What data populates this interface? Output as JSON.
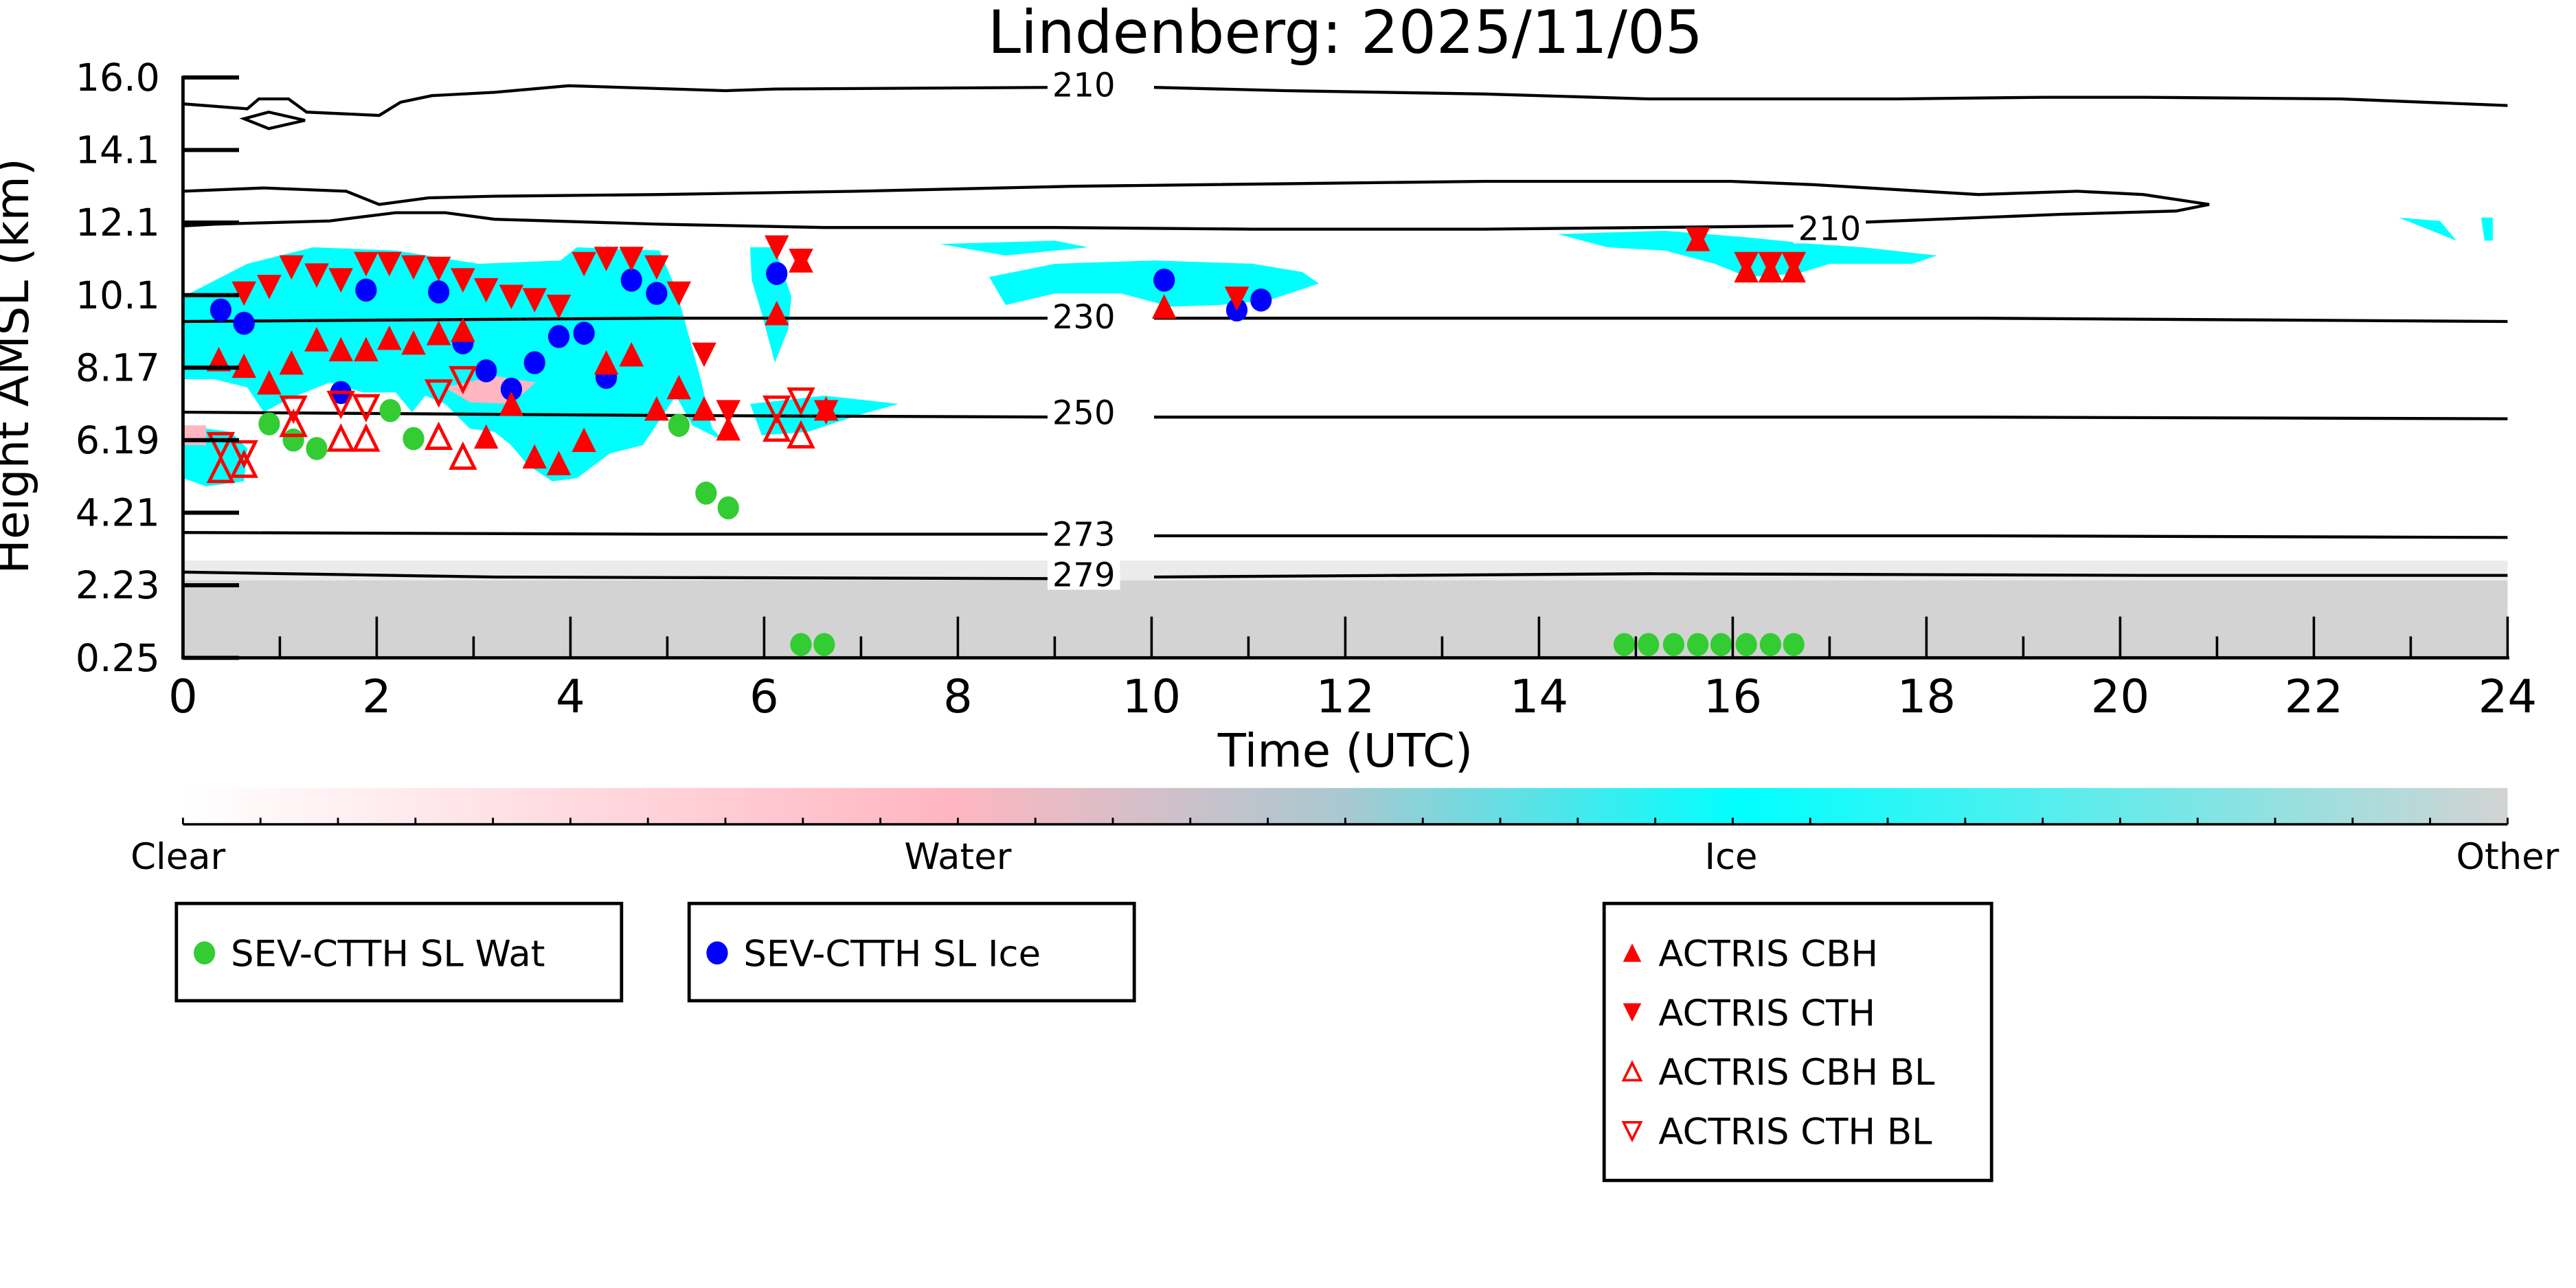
{
  "chart_data": {
    "type": "scatter",
    "title": "Lindenberg: 2025/11/05",
    "xlabel": "Time (UTC)",
    "ylabel": "Height AMSL (km)",
    "xlim": [
      0,
      24
    ],
    "ylim": [
      0.25,
      16.0
    ],
    "x_ticks": [
      "0",
      "2",
      "4",
      "6",
      "8",
      "10",
      "12",
      "14",
      "16",
      "18",
      "20",
      "22",
      "24"
    ],
    "y_ticks": [
      "0.25",
      "2.23",
      "4.21",
      "6.19",
      "8.17",
      "10.1",
      "12.1",
      "14.1",
      "16.0"
    ],
    "contour_labels": [
      {
        "label": "210",
        "t": 9.3,
        "h": 15.8
      },
      {
        "label": "210",
        "t": 17.0,
        "h": 11.9
      },
      {
        "label": "230",
        "t": 9.3,
        "h": 9.5
      },
      {
        "label": "250",
        "t": 9.3,
        "h": 6.9
      },
      {
        "label": "273",
        "t": 9.3,
        "h": 3.6
      },
      {
        "label": "279",
        "t": 9.3,
        "h": 2.5
      }
    ],
    "colorbar": {
      "labels": [
        "Clear",
        "Water",
        "Ice",
        "Other"
      ],
      "colors": [
        "#ffffff",
        "#ffb6c1",
        "#00ffff",
        "#d3d3d3"
      ]
    },
    "series": [
      {
        "name": "SEV-CTTH SL Wat",
        "marker": "circle",
        "color": "#33cc33",
        "points": [
          [
            0.89,
            6.6
          ],
          [
            1.14,
            6.16
          ],
          [
            1.38,
            5.93
          ],
          [
            2.14,
            6.96
          ],
          [
            2.38,
            6.2
          ],
          [
            5.12,
            6.56
          ],
          [
            5.4,
            4.72
          ],
          [
            5.63,
            4.32
          ],
          [
            6.38,
            0.61
          ],
          [
            6.62,
            0.61
          ],
          [
            14.88,
            0.61
          ],
          [
            15.13,
            0.61
          ],
          [
            15.39,
            0.61
          ],
          [
            15.64,
            0.61
          ],
          [
            15.88,
            0.61
          ],
          [
            16.14,
            0.61
          ],
          [
            16.39,
            0.61
          ],
          [
            16.63,
            0.61
          ]
        ]
      },
      {
        "name": "SEV-CTTH SL Ice",
        "marker": "circle",
        "color": "#0000ff",
        "points": [
          [
            0.39,
            9.69
          ],
          [
            0.63,
            9.33
          ],
          [
            1.63,
            7.45
          ],
          [
            1.89,
            10.23
          ],
          [
            2.64,
            10.18
          ],
          [
            2.89,
            8.8
          ],
          [
            3.13,
            8.04
          ],
          [
            3.39,
            7.54
          ],
          [
            3.63,
            8.26
          ],
          [
            3.88,
            8.97
          ],
          [
            4.14,
            9.06
          ],
          [
            4.37,
            7.86
          ],
          [
            4.63,
            10.5
          ],
          [
            4.89,
            10.14
          ],
          [
            6.13,
            10.68
          ],
          [
            10.13,
            10.5
          ],
          [
            10.88,
            9.69
          ],
          [
            11.13,
            9.96
          ]
        ]
      },
      {
        "name": "ACTRIS CBH",
        "marker": "triangle-up",
        "color": "#ff0000",
        "points": [
          [
            0.37,
            8.35
          ],
          [
            0.63,
            8.17
          ],
          [
            0.89,
            7.72
          ],
          [
            1.12,
            8.26
          ],
          [
            1.38,
            8.89
          ],
          [
            1.63,
            8.62
          ],
          [
            1.89,
            8.62
          ],
          [
            2.13,
            8.93
          ],
          [
            2.38,
            8.8
          ],
          [
            2.64,
            9.06
          ],
          [
            2.89,
            9.15
          ],
          [
            3.13,
            6.25
          ],
          [
            3.39,
            7.14
          ],
          [
            3.63,
            5.71
          ],
          [
            3.88,
            5.53
          ],
          [
            4.14,
            6.16
          ],
          [
            4.37,
            8.26
          ],
          [
            4.63,
            8.48
          ],
          [
            4.89,
            7.01
          ],
          [
            5.12,
            7.59
          ],
          [
            5.38,
            7.01
          ],
          [
            5.63,
            6.47
          ],
          [
            6.13,
            9.6
          ],
          [
            6.38,
            11.03
          ],
          [
            6.64,
            7.01
          ],
          [
            10.13,
            9.78
          ],
          [
            15.64,
            11.61
          ],
          [
            16.14,
            10.76
          ],
          [
            16.39,
            10.76
          ],
          [
            16.63,
            10.76
          ]
        ]
      },
      {
        "name": "ACTRIS CTH",
        "marker": "triangle-down",
        "color": "#ff0000",
        "points": [
          [
            0.63,
            10.14
          ],
          [
            0.89,
            10.32
          ],
          [
            1.12,
            10.85
          ],
          [
            1.38,
            10.63
          ],
          [
            1.63,
            10.5
          ],
          [
            1.89,
            10.94
          ],
          [
            2.13,
            10.94
          ],
          [
            2.38,
            10.85
          ],
          [
            2.64,
            10.81
          ],
          [
            2.89,
            10.5
          ],
          [
            3.13,
            10.23
          ],
          [
            3.39,
            10.05
          ],
          [
            3.63,
            9.96
          ],
          [
            3.88,
            9.78
          ],
          [
            4.14,
            10.94
          ],
          [
            4.37,
            11.08
          ],
          [
            4.63,
            11.08
          ],
          [
            4.89,
            10.85
          ],
          [
            5.12,
            10.14
          ],
          [
            5.38,
            8.48
          ],
          [
            5.63,
            6.92
          ],
          [
            6.13,
            11.39
          ],
          [
            6.38,
            11.03
          ],
          [
            6.64,
            6.92
          ],
          [
            10.88,
            10.0
          ],
          [
            15.64,
            11.61
          ],
          [
            16.14,
            10.94
          ],
          [
            16.39,
            10.94
          ],
          [
            16.63,
            10.94
          ]
        ]
      },
      {
        "name": "ACTRIS CBH BL",
        "marker": "triangle-up-open",
        "color": "#ff0000",
        "points": [
          [
            0.39,
            5.35
          ],
          [
            0.63,
            5.49
          ],
          [
            1.14,
            6.6
          ],
          [
            1.63,
            6.2
          ],
          [
            1.89,
            6.2
          ],
          [
            2.64,
            6.25
          ],
          [
            2.89,
            5.71
          ],
          [
            6.13,
            6.47
          ],
          [
            6.38,
            6.29
          ]
        ]
      },
      {
        "name": "ACTRIS CTH BL",
        "marker": "triangle-down-open",
        "color": "#ff0000",
        "points": [
          [
            0.39,
            6.02
          ],
          [
            0.63,
            5.8
          ],
          [
            1.14,
            7.01
          ],
          [
            1.63,
            7.14
          ],
          [
            1.89,
            7.05
          ],
          [
            2.64,
            7.45
          ],
          [
            2.89,
            7.81
          ],
          [
            6.13,
            7.01
          ],
          [
            6.38,
            7.23
          ]
        ]
      }
    ],
    "legends": [
      [
        "SEV-CTTH SL Wat"
      ],
      [
        "SEV-CTTH SL Ice"
      ],
      [
        "ACTRIS CBH",
        "ACTRIS CTH",
        "ACTRIS CBH BL",
        "ACTRIS CTH BL"
      ]
    ]
  }
}
